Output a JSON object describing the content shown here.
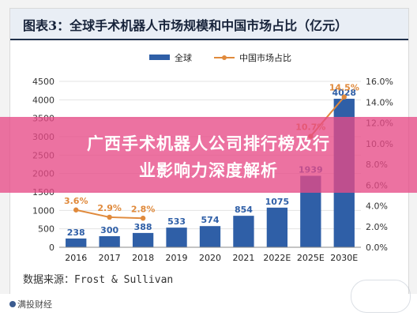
{
  "title": "图表3：全球手术机器人市场规模和中国市场占比（亿元）",
  "source": "数据来源：Frost & Sullivan",
  "overlay": {
    "line1": "广西手术机器人公司排行榜及行",
    "line2": "业影响力深度解析"
  },
  "footer": {
    "brand": "满投财经"
  },
  "colors": {
    "bar": "#2f5fa7",
    "line": "#e08a3c",
    "overlay": "#e74a87"
  },
  "chart_data": {
    "type": "bar",
    "categories": [
      "2016",
      "2017",
      "2018",
      "2019",
      "2020",
      "2021",
      "2022E",
      "2025E",
      "2030E"
    ],
    "series": [
      {
        "name": "全球",
        "type": "bar",
        "axis": "left",
        "values": [
          238,
          300,
          388,
          533,
          574,
          854,
          1075,
          1939,
          4028
        ]
      },
      {
        "name": "中国市场占比",
        "type": "line",
        "axis": "right",
        "values": [
          3.6,
          2.9,
          2.8,
          null,
          null,
          null,
          null,
          10.7,
          14.5
        ]
      }
    ],
    "bar_labels": [
      "238",
      "300",
      "388",
      "533",
      "574",
      "854",
      "1075",
      "1939",
      "4028"
    ],
    "line_labels": [
      "3.6%",
      "2.9%",
      "2.8%",
      "",
      "",
      "",
      "",
      "10.7%",
      "14.5%"
    ],
    "y_left": {
      "min": 0,
      "max": 4500,
      "ticks": [
        "0",
        "500",
        "1000",
        "1500",
        "2000",
        "2500",
        "3000",
        "3500",
        "4000",
        "4500"
      ]
    },
    "y_right": {
      "min": 0,
      "max": 16,
      "ticks": [
        "0.0%",
        "2.0%",
        "4.0%",
        "6.0%",
        "8.0%",
        "10.0%",
        "12.0%",
        "14.0%",
        "16.0%"
      ]
    },
    "legend_position": "top"
  }
}
